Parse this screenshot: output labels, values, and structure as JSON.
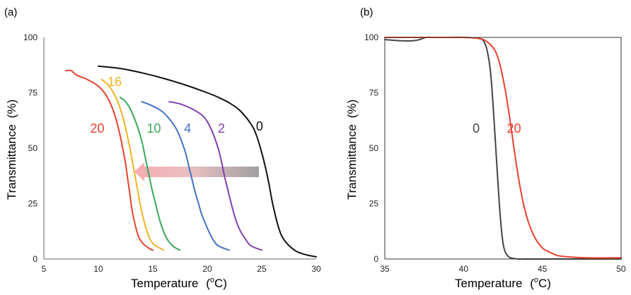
{
  "chart_data": [
    {
      "panel_label": "(a)",
      "type": "line",
      "xlabel_main": "Temperature",
      "xlabel_unit_open": "(",
      "xlabel_unit_sup": "o",
      "xlabel_unit_close": "C)",
      "ylabel": "Transmittance",
      "ylabel_unit": "(%)",
      "xlim": [
        5,
        30
      ],
      "ylim": [
        0,
        100
      ],
      "xticks": [
        "5",
        "10",
        "15",
        "20",
        "25",
        "30"
      ],
      "yticks": [
        "0",
        "25",
        "50",
        "75",
        "100"
      ],
      "frame": "left-bottom",
      "annotation": "arrow pointing from curve 0 toward curve 20 (decreasing transition temperature)",
      "series": [
        {
          "name": "0",
          "color": "#111111",
          "x": [
            10,
            12,
            14,
            16,
            18,
            20,
            21,
            22,
            23,
            24,
            24.5,
            25,
            25.4,
            25.7,
            26,
            26.5,
            27,
            28,
            29,
            30
          ],
          "y": [
            87,
            86,
            84,
            81.5,
            78.5,
            75,
            73,
            70.5,
            67,
            61,
            56,
            48,
            40,
            33,
            25,
            15,
            9,
            4,
            2,
            1
          ]
        },
        {
          "name": "2",
          "color": "#7e3fb0",
          "x": [
            16.5,
            17.5,
            18.5,
            19.5,
            20,
            20.5,
            21,
            21.3,
            21.6,
            21.9,
            22.2,
            22.6,
            23,
            23.5,
            24,
            25
          ],
          "y": [
            71,
            70,
            68,
            65,
            62,
            57,
            50,
            44,
            37,
            31,
            25,
            18,
            13,
            9,
            6,
            4
          ]
        },
        {
          "name": "4",
          "color": "#4472c4",
          "x": [
            14,
            15,
            16,
            17,
            17.5,
            18,
            18.3,
            18.6,
            18.9,
            19.2,
            19.5,
            20,
            20.5,
            21,
            22
          ],
          "y": [
            71,
            69,
            66,
            60,
            55,
            48,
            42,
            36,
            30,
            25,
            20,
            14,
            9,
            6,
            4
          ]
        },
        {
          "name": "10",
          "color": "#3aa85a",
          "x": [
            12,
            12.5,
            13,
            13.5,
            14,
            14.3,
            14.6,
            14.9,
            15.2,
            15.5,
            15.8,
            16.2,
            16.8,
            17.5
          ],
          "y": [
            73,
            71,
            67,
            61,
            53,
            46,
            39,
            32,
            26,
            20,
            15,
            10,
            6,
            4
          ]
        },
        {
          "name": "16",
          "color": "#f0b323",
          "x": [
            10.3,
            11,
            11.7,
            12.2,
            12.6,
            12.9,
            13.2,
            13.5,
            13.8,
            14.1,
            14.5,
            15,
            16
          ],
          "y": [
            81,
            78,
            72,
            65,
            57,
            50,
            42,
            34,
            26,
            19,
            12,
            7,
            4
          ]
        },
        {
          "name": "20",
          "color": "#e8412e",
          "x": [
            7,
            7.5,
            8,
            9,
            10,
            10.7,
            11.3,
            11.8,
            12.2,
            12.5,
            12.7,
            12.9,
            13.1,
            13.4,
            13.7,
            14.1,
            14.6,
            15
          ],
          "y": [
            85,
            85,
            83,
            81,
            78,
            74,
            68,
            60,
            51,
            43,
            36,
            29,
            22,
            15,
            10,
            7,
            5,
            4
          ]
        }
      ],
      "curve_labels": [
        {
          "text": "0",
          "color": "#111111",
          "x": 24.8,
          "y": 58
        },
        {
          "text": "2",
          "color": "#7e3fb0",
          "x": 21.3,
          "y": 57
        },
        {
          "text": "4",
          "color": "#4472c4",
          "x": 18.2,
          "y": 57
        },
        {
          "text": "10",
          "color": "#3aa85a",
          "x": 15.1,
          "y": 57
        },
        {
          "text": "16",
          "color": "#f0b323",
          "x": 11.5,
          "y": 78
        },
        {
          "text": "20",
          "color": "#e8412e",
          "x": 9.9,
          "y": 57
        }
      ]
    },
    {
      "panel_label": "(b)",
      "type": "line",
      "xlabel_main": "Temperature",
      "xlabel_unit_open": "(",
      "xlabel_unit_sup": "o",
      "xlabel_unit_close": "C)",
      "ylabel": "Transmittance",
      "ylabel_unit": "(%)",
      "xlim": [
        35,
        50
      ],
      "ylim": [
        0,
        100
      ],
      "xticks": [
        "35",
        "40",
        "45",
        "50"
      ],
      "yticks": [
        "0",
        "25",
        "50",
        "75",
        "100"
      ],
      "frame": "box",
      "series": [
        {
          "name": "0",
          "color": "#444444",
          "x": [
            35,
            36,
            36.8,
            37.2,
            37.6,
            38,
            39,
            40,
            41,
            41.3,
            41.5,
            41.7,
            41.85,
            42,
            42.15,
            42.3,
            42.45,
            42.6,
            42.8,
            43,
            43.5,
            44,
            45,
            50
          ],
          "y": [
            99,
            98.5,
            98.5,
            99,
            100,
            100,
            100,
            100,
            99.5,
            98,
            94,
            85,
            72,
            55,
            38,
            22,
            10,
            4,
            1.5,
            0.5,
            0,
            0,
            0,
            0
          ]
        },
        {
          "name": "20",
          "color": "#e8412e",
          "x": [
            35,
            37,
            39,
            40,
            41,
            41.5,
            42,
            42.3,
            42.6,
            42.9,
            43.2,
            43.5,
            43.8,
            44.1,
            44.5,
            45,
            45.5,
            46,
            47,
            48,
            50
          ],
          "y": [
            100,
            100,
            100,
            100,
            99.5,
            98,
            94,
            88,
            78,
            65,
            50,
            36,
            25,
            17,
            10,
            5,
            3,
            1.5,
            0.8,
            0.5,
            0.5
          ]
        }
      ],
      "curve_labels": [
        {
          "text": "0",
          "color": "#444444",
          "x": 40.8,
          "y": 57
        },
        {
          "text": "20",
          "color": "#e8412e",
          "x": 43.2,
          "y": 57
        }
      ]
    }
  ]
}
